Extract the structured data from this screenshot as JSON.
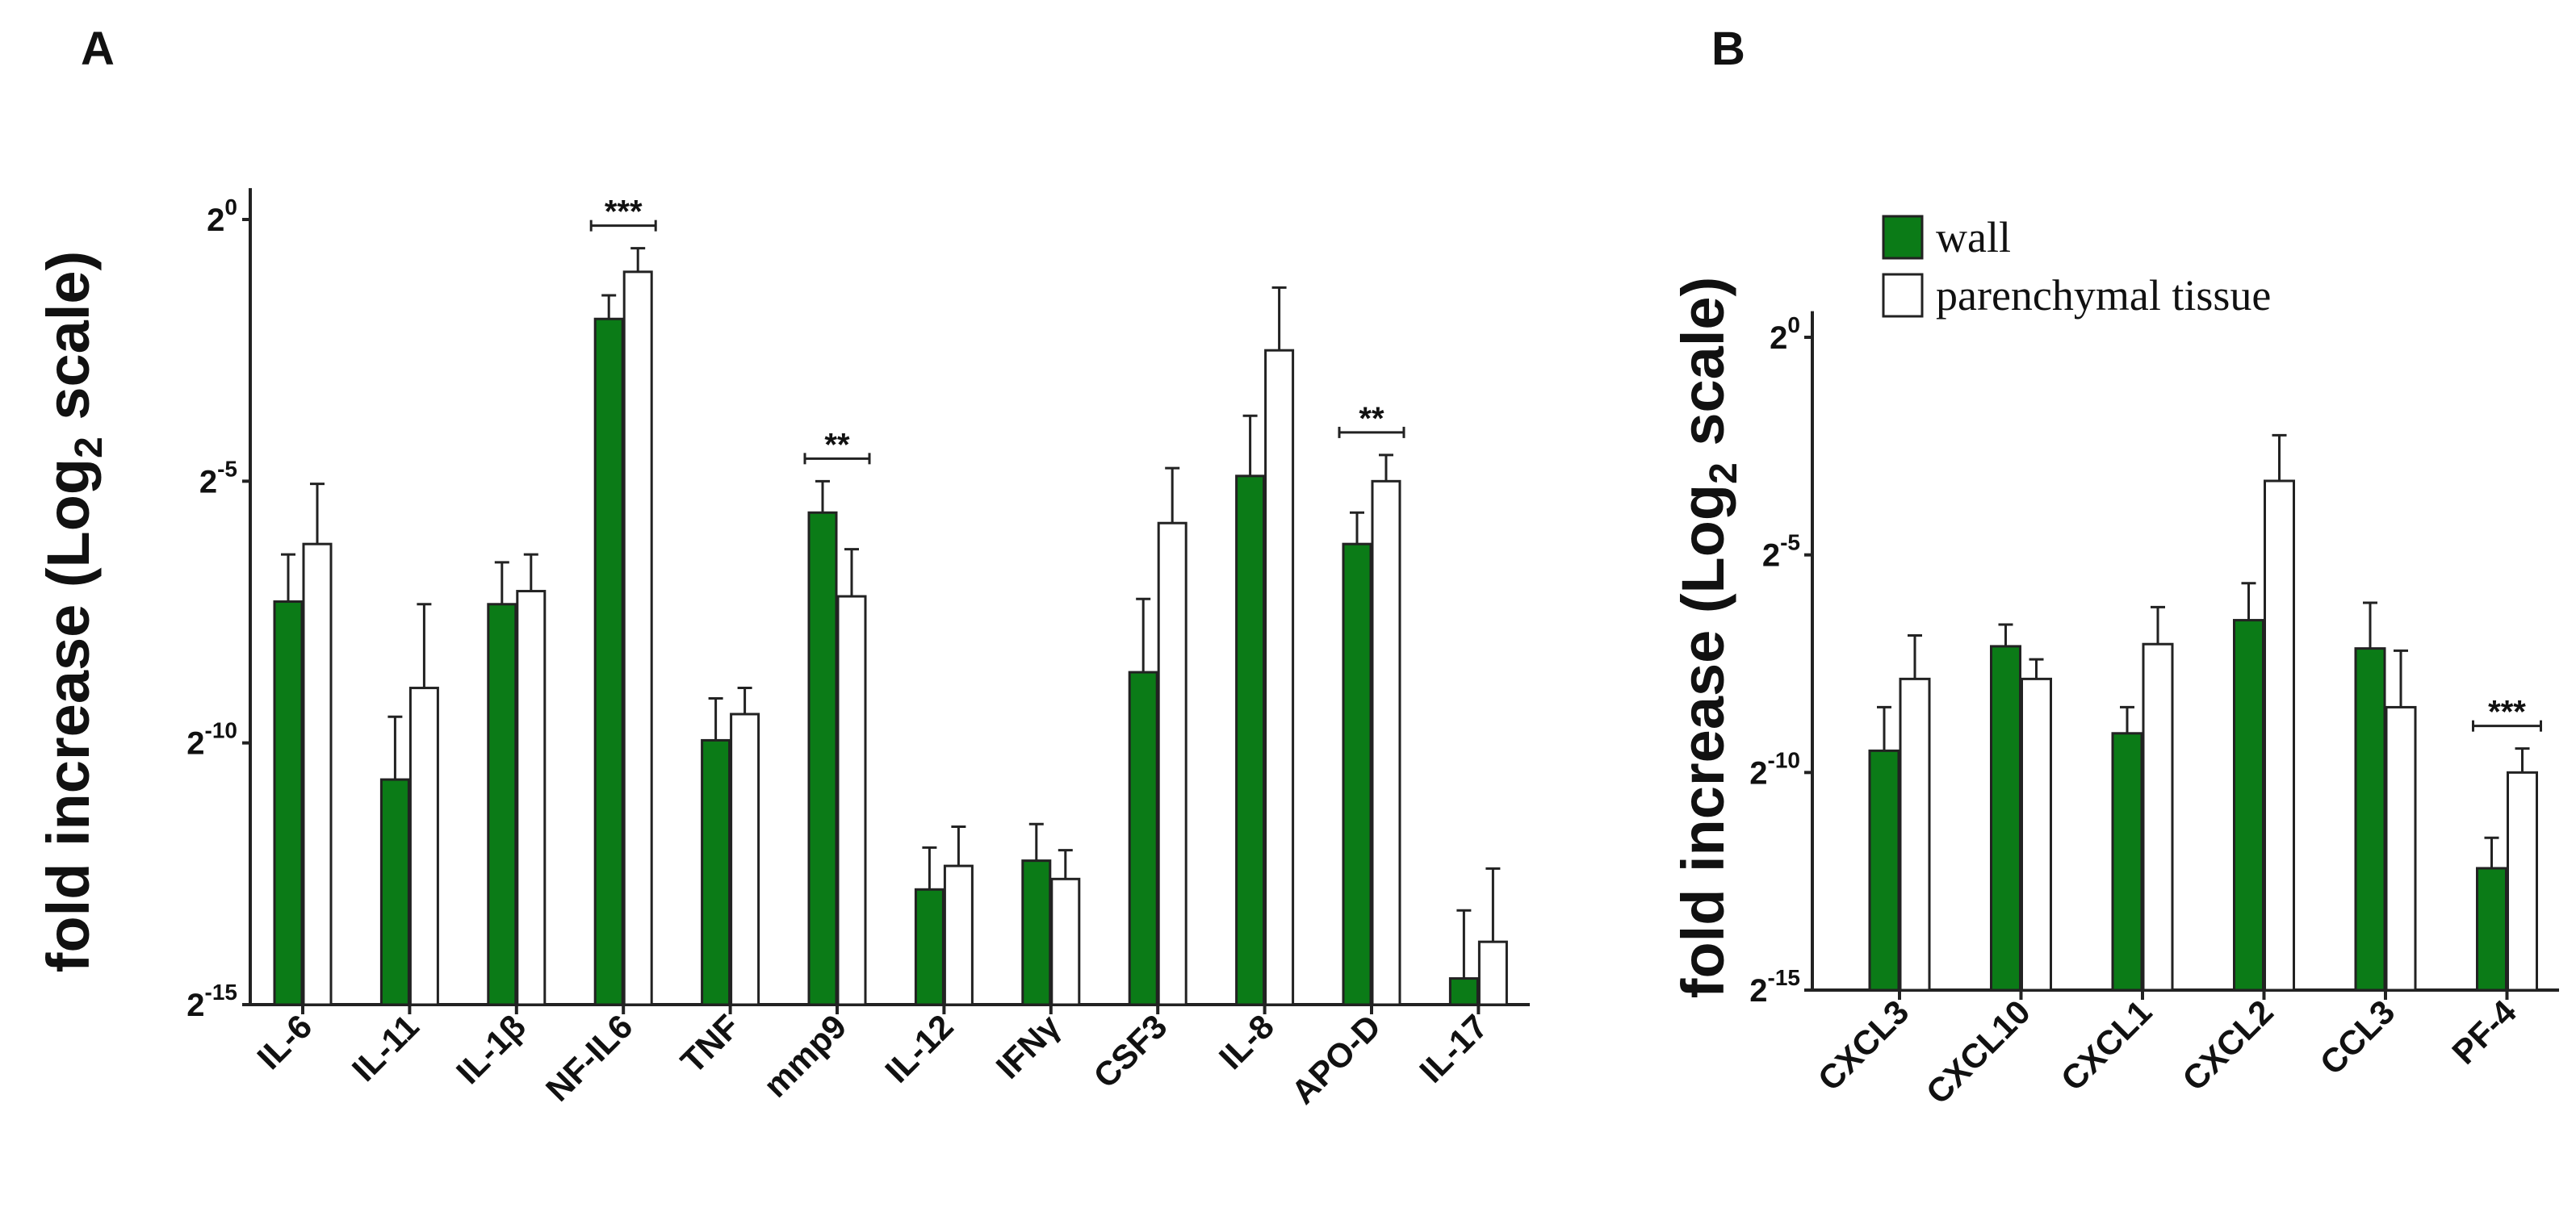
{
  "colors": {
    "wall": "#0b7b17",
    "parenchymal": "#ffffff",
    "outline": "#222222"
  },
  "legend": {
    "items": [
      {
        "label": "wall",
        "color": "#0b7b17"
      },
      {
        "label": "parenchymal tissue",
        "color": "#ffffff"
      }
    ]
  },
  "chart_data": [
    {
      "panel": "A",
      "type": "bar",
      "ylabel_main": "fold increase (Log",
      "ylabel_sub": "2",
      "ylabel_end": " scale)",
      "yscale": "log2",
      "ylim_exp": [
        -15,
        0.6
      ],
      "yticks": [
        {
          "base": "2",
          "exp": "0",
          "value": 0
        },
        {
          "base": "2",
          "exp": "-5",
          "value": -5
        },
        {
          "base": "2",
          "exp": "-10",
          "value": -10
        },
        {
          "base": "2",
          "exp": "-15",
          "value": -15
        }
      ],
      "categories": [
        "IL-6",
        "IL-11",
        "IL-1β",
        "NF-IL6",
        "TNF",
        "mmp9",
        "IL-12",
        "IFNγ",
        "CSF3",
        "IL-8",
        "APO-D",
        "IL-17"
      ],
      "series": [
        {
          "name": "wall",
          "values": [
            -7.3,
            -10.7,
            -7.35,
            -1.9,
            -9.95,
            -5.6,
            -12.8,
            -12.25,
            -8.65,
            -4.9,
            -6.2,
            -14.5
          ],
          "errors": [
            0.9,
            1.2,
            0.8,
            0.45,
            0.8,
            0.6,
            0.8,
            0.7,
            1.4,
            1.15,
            0.6,
            1.3
          ]
        },
        {
          "name": "parenchymal tissue",
          "values": [
            -6.2,
            -8.95,
            -7.1,
            -1.0,
            -9.45,
            -7.2,
            -12.35,
            -12.6,
            -5.8,
            -2.5,
            -5.0,
            -13.8
          ],
          "errors": [
            1.15,
            1.6,
            0.7,
            0.45,
            0.5,
            0.9,
            0.75,
            0.55,
            1.05,
            1.2,
            0.5,
            1.4
          ]
        }
      ],
      "significance": [
        {
          "category": "NF-IL6",
          "label": "***"
        },
        {
          "category": "mmp9",
          "label": "**"
        },
        {
          "category": "APO-D",
          "label": "**"
        }
      ]
    },
    {
      "panel": "B",
      "type": "bar",
      "ylabel_main": "fold increase (Log",
      "ylabel_sub": "2",
      "ylabel_end": " scale)",
      "yscale": "log2",
      "ylim_exp": [
        -15,
        0.6
      ],
      "yticks": [
        {
          "base": "2",
          "exp": "0",
          "value": 0
        },
        {
          "base": "2",
          "exp": "-5",
          "value": -5
        },
        {
          "base": "2",
          "exp": "-10",
          "value": -10
        },
        {
          "base": "2",
          "exp": "-15",
          "value": -15
        }
      ],
      "categories": [
        "CXCL3",
        "CXCL10",
        "CXCL1",
        "CXCL2",
        "CCL3",
        "PF-4"
      ],
      "series": [
        {
          "name": "wall",
          "values": [
            -9.5,
            -7.1,
            -9.1,
            -6.5,
            -7.15,
            -12.2
          ],
          "errors": [
            1.0,
            0.5,
            0.6,
            0.85,
            1.05,
            0.7
          ]
        },
        {
          "name": "parenchymal tissue",
          "values": [
            -7.85,
            -7.85,
            -7.05,
            -3.3,
            -8.5,
            -10.0
          ],
          "errors": [
            1.0,
            0.45,
            0.85,
            1.05,
            1.3,
            0.55
          ]
        }
      ],
      "significance": [
        {
          "category": "PF-4",
          "label": "***"
        }
      ]
    }
  ]
}
